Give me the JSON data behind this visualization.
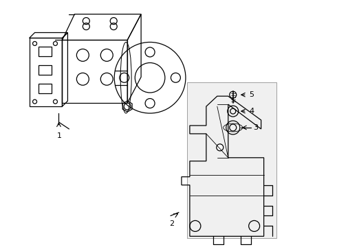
{
  "bg_color": "#ffffff",
  "line_color": "#000000",
  "label_color": "#000000",
  "fig_width": 4.9,
  "fig_height": 3.6,
  "dpi": 100,
  "label_fontsize": 8
}
